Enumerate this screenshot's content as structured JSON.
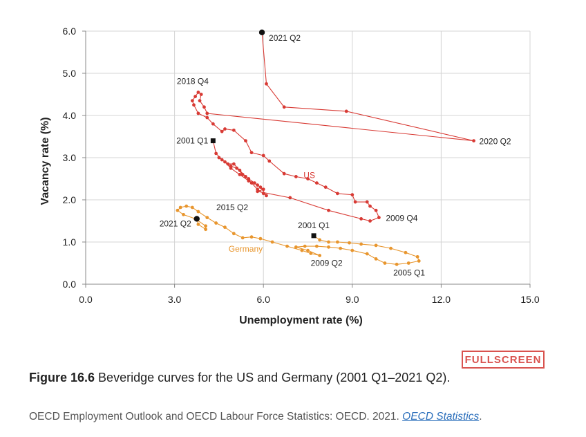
{
  "chart_data": {
    "type": "scatter",
    "xlabel": "Unemployment rate (%)",
    "ylabel": "Vacancy rate (%)",
    "xlim": [
      0,
      15
    ],
    "ylim": [
      0,
      6
    ],
    "xticks": [
      "0.0",
      "3.0",
      "6.0",
      "9.0",
      "12.0",
      "15.0"
    ],
    "yticks": [
      "0.0",
      "1.0",
      "2.0",
      "3.0",
      "4.0",
      "5.0",
      "6.0"
    ],
    "grid": "vertical and horizontal",
    "series": [
      {
        "name": "US",
        "color": "#d83a34",
        "points": [
          [
            4.3,
            3.4
          ],
          [
            4.4,
            3.1
          ],
          [
            4.6,
            2.95
          ],
          [
            4.5,
            3.0
          ],
          [
            4.8,
            2.85
          ],
          [
            5.0,
            2.85
          ],
          [
            5.2,
            2.7
          ],
          [
            5.4,
            2.55
          ],
          [
            5.6,
            2.4
          ],
          [
            5.8,
            2.25
          ],
          [
            6.0,
            2.15
          ],
          [
            6.1,
            2.1
          ],
          [
            5.9,
            2.3
          ],
          [
            5.7,
            2.4
          ],
          [
            5.5,
            2.5
          ],
          [
            5.3,
            2.6
          ],
          [
            5.1,
            2.75
          ],
          [
            4.9,
            2.8
          ],
          [
            4.7,
            2.9
          ],
          [
            4.9,
            2.75
          ],
          [
            5.2,
            2.6
          ],
          [
            5.5,
            2.45
          ],
          [
            5.8,
            2.35
          ],
          [
            6.0,
            2.25
          ],
          [
            5.8,
            2.2
          ],
          [
            6.9,
            2.05
          ],
          [
            8.2,
            1.75
          ],
          [
            9.3,
            1.55
          ],
          [
            9.6,
            1.5
          ],
          [
            9.9,
            1.58
          ],
          [
            9.8,
            1.75
          ],
          [
            9.6,
            1.85
          ],
          [
            9.5,
            1.95
          ],
          [
            9.1,
            1.95
          ],
          [
            9.0,
            2.12
          ],
          [
            8.5,
            2.15
          ],
          [
            8.1,
            2.3
          ],
          [
            7.8,
            2.4
          ],
          [
            7.5,
            2.5
          ],
          [
            7.1,
            2.55
          ],
          [
            6.7,
            2.62
          ],
          [
            6.2,
            2.92
          ],
          [
            6.0,
            3.05
          ],
          [
            5.6,
            3.12
          ],
          [
            5.4,
            3.4
          ],
          [
            5.0,
            3.65
          ],
          [
            4.7,
            3.68
          ],
          [
            4.6,
            3.62
          ],
          [
            4.3,
            3.8
          ],
          [
            4.1,
            3.95
          ],
          [
            3.8,
            4.05
          ],
          [
            3.65,
            4.25
          ],
          [
            3.6,
            4.35
          ],
          [
            3.7,
            4.45
          ],
          [
            3.8,
            4.55
          ],
          [
            3.9,
            4.5
          ],
          [
            3.85,
            4.35
          ],
          [
            4.0,
            4.2
          ],
          [
            4.1,
            4.05
          ],
          [
            13.1,
            3.4
          ],
          [
            8.8,
            4.1
          ],
          [
            6.7,
            4.2
          ],
          [
            6.1,
            4.75
          ],
          [
            5.95,
            5.97
          ]
        ]
      },
      {
        "name": "Germany",
        "color": "#e8962e",
        "points": [
          [
            7.7,
            1.15
          ],
          [
            7.9,
            1.05
          ],
          [
            8.2,
            1.0
          ],
          [
            8.5,
            1.0
          ],
          [
            8.9,
            0.98
          ],
          [
            9.3,
            0.95
          ],
          [
            9.8,
            0.92
          ],
          [
            10.3,
            0.85
          ],
          [
            10.8,
            0.75
          ],
          [
            11.2,
            0.65
          ],
          [
            11.25,
            0.55
          ],
          [
            10.9,
            0.5
          ],
          [
            10.5,
            0.47
          ],
          [
            10.1,
            0.5
          ],
          [
            9.8,
            0.6
          ],
          [
            9.5,
            0.72
          ],
          [
            9.0,
            0.8
          ],
          [
            8.6,
            0.85
          ],
          [
            8.2,
            0.88
          ],
          [
            7.8,
            0.9
          ],
          [
            7.4,
            0.9
          ],
          [
            7.1,
            0.88
          ],
          [
            7.5,
            0.8
          ],
          [
            7.9,
            0.68
          ],
          [
            7.6,
            0.73
          ],
          [
            7.3,
            0.8
          ],
          [
            6.8,
            0.9
          ],
          [
            6.3,
            1.0
          ],
          [
            5.9,
            1.08
          ],
          [
            5.6,
            1.12
          ],
          [
            5.3,
            1.1
          ],
          [
            5.0,
            1.2
          ],
          [
            4.7,
            1.35
          ],
          [
            4.4,
            1.45
          ],
          [
            4.1,
            1.58
          ],
          [
            3.8,
            1.72
          ],
          [
            3.6,
            1.82
          ],
          [
            3.4,
            1.85
          ],
          [
            3.2,
            1.82
          ],
          [
            3.1,
            1.75
          ],
          [
            3.3,
            1.65
          ],
          [
            3.7,
            1.55
          ],
          [
            4.05,
            1.38
          ],
          [
            4.05,
            1.3
          ],
          [
            3.8,
            1.42
          ],
          [
            3.75,
            1.55
          ]
        ]
      }
    ],
    "annotations": [
      {
        "text": "2021 Q2",
        "x": 5.95,
        "y": 5.97,
        "series": "US"
      },
      {
        "text": "2018 Q4",
        "x": 3.8,
        "y": 4.55,
        "series": "US"
      },
      {
        "text": "2001 Q1",
        "x": 4.3,
        "y": 3.4,
        "series": "US"
      },
      {
        "text": "2020 Q2",
        "x": 13.1,
        "y": 3.4,
        "series": "US"
      },
      {
        "text": "US",
        "x": 7.2,
        "y": 2.6,
        "series": "US"
      },
      {
        "text": "2009 Q4",
        "x": 9.9,
        "y": 1.58,
        "series": "US"
      },
      {
        "text": "2015 Q2",
        "x": 4.2,
        "y": 1.72,
        "series": "Germany"
      },
      {
        "text": "2021 Q2",
        "x": 3.75,
        "y": 1.55,
        "series": "Germany"
      },
      {
        "text": "2001 Q1",
        "x": 7.7,
        "y": 1.15,
        "series": "Germany"
      },
      {
        "text": "Germany",
        "x": 5.4,
        "y": 0.85,
        "series": "Germany"
      },
      {
        "text": "2009 Q2",
        "x": 7.9,
        "y": 0.68,
        "series": "Germany"
      },
      {
        "text": "2005 Q1",
        "x": 10.5,
        "y": 0.47,
        "series": "Germany"
      }
    ]
  },
  "fullscreen_label": "FULLSCREEN",
  "caption": {
    "figure": "Figure 16.6",
    "text": " Beveridge curves for the US and Germany (2001 Q1–2021 Q2)."
  },
  "source": {
    "text": "OECD Employment Outlook and OECD Labour Force Statistics: OECD. 2021. ",
    "link": "OECD Statistics",
    "end": "."
  }
}
